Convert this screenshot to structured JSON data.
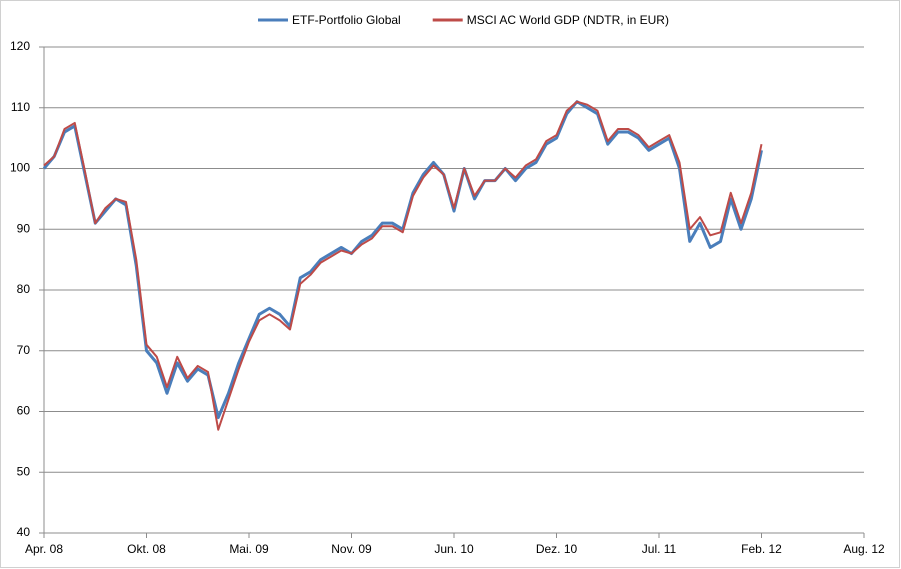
{
  "chart_data": {
    "type": "line",
    "x": [
      2008.3,
      2008.35,
      2008.4,
      2008.45,
      2008.5,
      2008.55,
      2008.6,
      2008.65,
      2008.7,
      2008.75,
      2008.8,
      2008.85,
      2008.9,
      2008.95,
      2009,
      2009.05,
      2009.1,
      2009.15,
      2009.2,
      2009.25,
      2009.3,
      2009.35,
      2009.4,
      2009.45,
      2009.5,
      2009.55,
      2009.6,
      2009.65,
      2009.7,
      2009.75,
      2009.8,
      2009.85,
      2009.9,
      2009.95,
      2010,
      2010.05,
      2010.1,
      2010.15,
      2010.2,
      2010.25,
      2010.3,
      2010.35,
      2010.4,
      2010.45,
      2010.5,
      2010.55,
      2010.6,
      2010.65,
      2010.7,
      2010.75,
      2010.8,
      2010.85,
      2010.9,
      2010.95,
      2011,
      2011.05,
      2011.1,
      2011.15,
      2011.2,
      2011.25,
      2011.3,
      2011.35,
      2011.4,
      2011.45,
      2011.5,
      2011.55,
      2011.6,
      2011.65,
      2011.7,
      2011.75,
      2011.8
    ],
    "series": [
      {
        "name": "ETF-Portfolio Global",
        "color": "#4a7ebb",
        "values": [
          100,
          102,
          106,
          107,
          99,
          91,
          93,
          95,
          94,
          84,
          70,
          68,
          63,
          68,
          65,
          67,
          66,
          59,
          63,
          68,
          72,
          76,
          77,
          76,
          74,
          82,
          83,
          85,
          86,
          87,
          86,
          88,
          89,
          91,
          91,
          90,
          96,
          99,
          101,
          99,
          93,
          100,
          95,
          98,
          98,
          100,
          98,
          100,
          101,
          104,
          105,
          109,
          111,
          110,
          109,
          104,
          106,
          106,
          105,
          103,
          104,
          105,
          100,
          88,
          91,
          87,
          88,
          95,
          90,
          95,
          103
        ]
      },
      {
        "name": "MSCI AC World GDP (NDTR, in EUR)",
        "color": "#be4b48",
        "values": [
          100.5,
          102,
          106.5,
          107.5,
          99.5,
          91,
          93.5,
          95,
          94.5,
          85,
          71,
          69,
          64,
          69,
          65.5,
          67.5,
          66.5,
          57,
          62,
          67,
          71.5,
          75,
          76,
          75,
          73.5,
          81,
          82.5,
          84.5,
          85.5,
          86.5,
          86,
          87.5,
          88.5,
          90.5,
          90.5,
          89.5,
          95.5,
          98.5,
          100.5,
          99,
          93.5,
          100,
          95.5,
          98,
          98,
          100,
          98.5,
          100.5,
          101.5,
          104.5,
          105.5,
          109.5,
          111,
          110.5,
          109.5,
          104.5,
          106.5,
          106.5,
          105.5,
          103.5,
          104.5,
          105.5,
          101,
          90,
          92,
          89,
          89.5,
          96,
          91,
          96,
          104
        ]
      }
    ],
    "xlim": [
      2008.3,
      2012.3
    ],
    "xticks": [
      {
        "value": 2008.3,
        "label": "Apr. 08"
      },
      {
        "value": 2008.8,
        "label": "Okt. 08"
      },
      {
        "value": 2009.3,
        "label": "Mai. 09"
      },
      {
        "value": 2009.8,
        "label": "Nov. 09"
      },
      {
        "value": 2010.3,
        "label": "Jun. 10"
      },
      {
        "value": 2010.8,
        "label": "Dez. 10"
      },
      {
        "value": 2011.3,
        "label": "Jul. 11"
      },
      {
        "value": 2011.8,
        "label": "Feb. 12"
      },
      {
        "value": 2012.3,
        "label": "Aug. 12"
      }
    ],
    "ylim": [
      40,
      120
    ],
    "yticks": [
      40,
      50,
      60,
      70,
      80,
      90,
      100,
      110,
      120
    ],
    "grid": true,
    "legend": "top"
  }
}
